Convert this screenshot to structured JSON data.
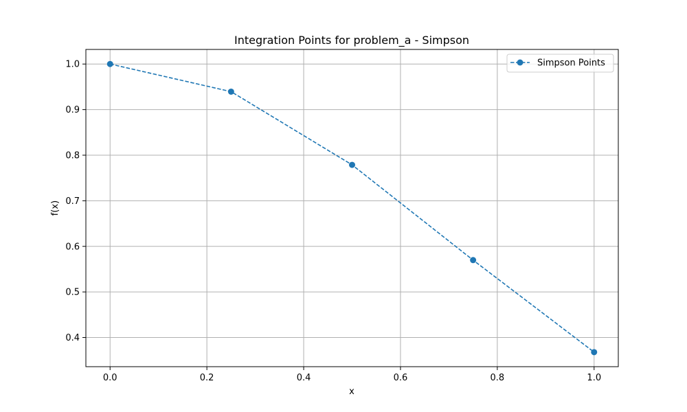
{
  "chart_data": {
    "type": "line",
    "title": "Integration Points for problem_a - Simpson",
    "xlabel": "x",
    "ylabel": "f(x)",
    "xlim": [
      -0.05,
      1.05
    ],
    "ylim": [
      0.336,
      1.032
    ],
    "xticks": [
      0.0,
      0.2,
      0.4,
      0.6,
      0.8,
      1.0
    ],
    "xtick_labels": [
      "0.0",
      "0.2",
      "0.4",
      "0.6",
      "0.8",
      "1.0"
    ],
    "yticks": [
      0.4,
      0.5,
      0.6,
      0.7,
      0.8,
      0.9,
      1.0
    ],
    "ytick_labels": [
      "0.4",
      "0.5",
      "0.6",
      "0.7",
      "0.8",
      "0.9",
      "1.0"
    ],
    "grid": true,
    "legend_position": "top-right",
    "series": [
      {
        "name": "Simpson Points",
        "color": "#1f77b4",
        "line_style": "dashed",
        "marker": "circle",
        "x": [
          0.0,
          0.25,
          0.5,
          0.75,
          1.0
        ],
        "y": [
          1.0,
          0.9394,
          0.7788,
          0.5698,
          0.3679
        ]
      }
    ]
  }
}
